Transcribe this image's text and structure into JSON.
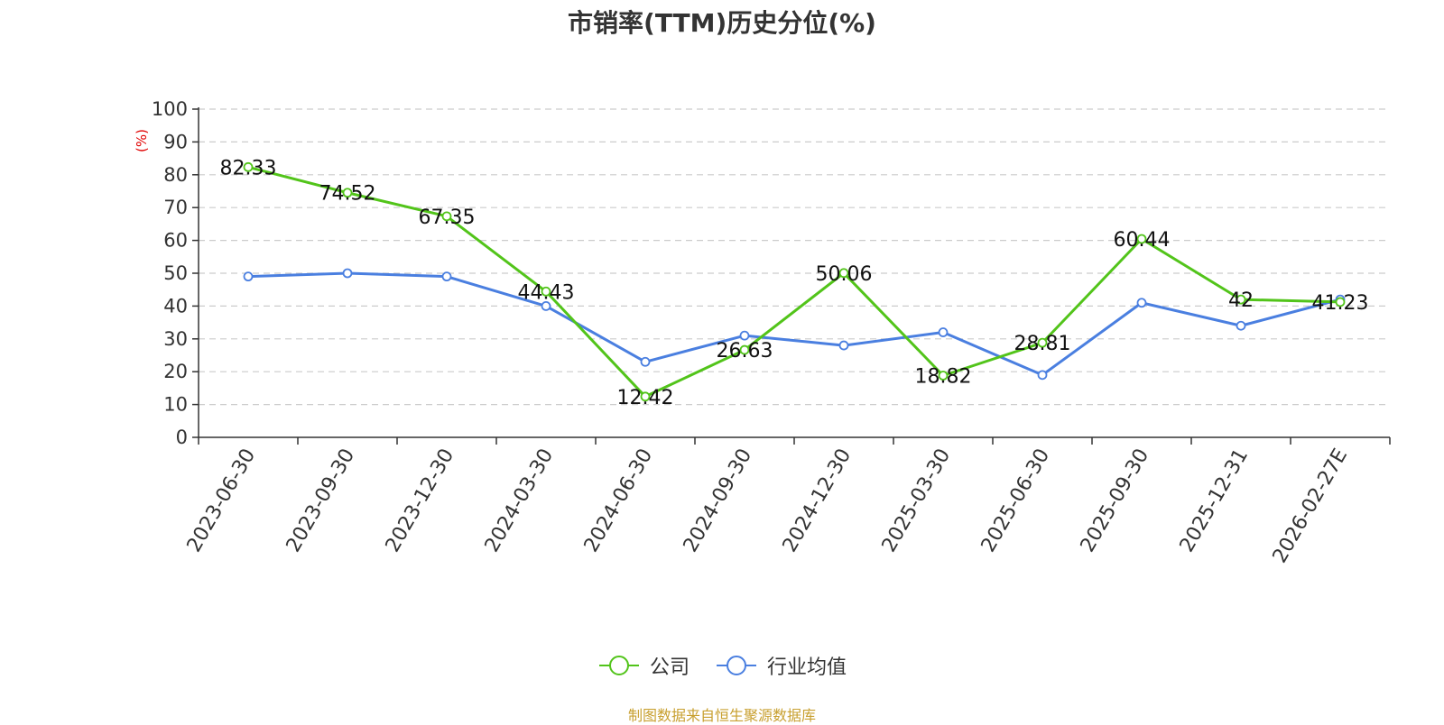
{
  "title": "市销率(TTM)历史分位(%)",
  "source": "制图数据来自恒生聚源数据库",
  "colors": {
    "company": "#52c41a",
    "industry": "#4a7fe0",
    "grid": "#cccccc",
    "axis": "#333333",
    "unit": "#e00000"
  },
  "chart_data": {
    "type": "line",
    "title": "市销率(TTM)历史分位(%)",
    "ylabel": "(%)",
    "ylim": [
      0,
      100
    ],
    "yticks": [
      0,
      10,
      20,
      30,
      40,
      50,
      60,
      70,
      80,
      90,
      100
    ],
    "grid": true,
    "legend_position": "bottom-center",
    "categories": [
      "2023-06-30",
      "2023-09-30",
      "2023-12-30",
      "2024-03-30",
      "2024-06-30",
      "2024-09-30",
      "2024-12-30",
      "2025-03-30",
      "2025-06-30",
      "2025-09-30",
      "2025-12-31",
      "2026-02-27E"
    ],
    "series": [
      {
        "name": "公司",
        "color": "#52c41a",
        "labels": [
          "82.33",
          "74.52",
          "67.35",
          "44.43",
          "12.42",
          "26.63",
          "50.06",
          "18.82",
          "28.81",
          "60.44",
          "42",
          "41.23"
        ],
        "values": [
          82.33,
          74.52,
          67.35,
          44.43,
          12.42,
          26.63,
          50.06,
          18.82,
          28.81,
          60.44,
          42,
          41.23
        ]
      },
      {
        "name": "行业均值",
        "color": "#4a7fe0",
        "values": [
          49,
          50,
          49,
          40,
          23,
          31,
          28,
          32,
          19,
          41,
          34,
          42
        ]
      }
    ]
  }
}
